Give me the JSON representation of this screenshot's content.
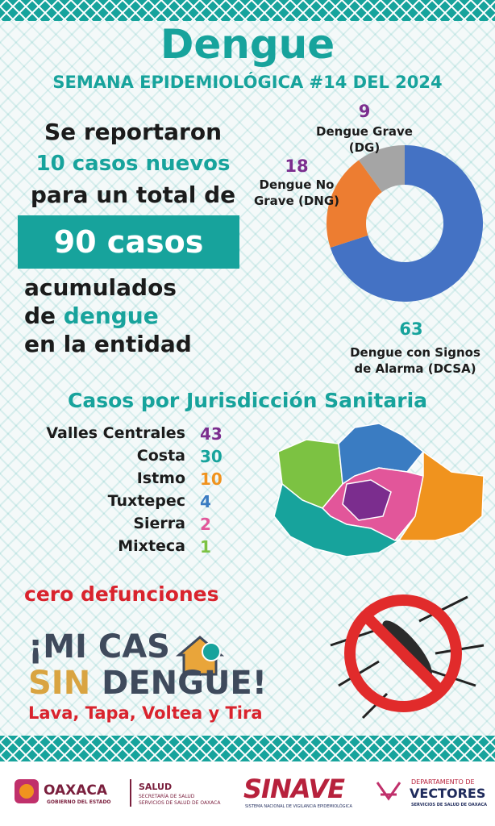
{
  "header": {
    "title": "Dengue",
    "subtitle": "SEMANA EPIDEMIOLÓGICA #14 DEL 2024"
  },
  "summary": {
    "line1": "Se reportaron",
    "new_cases": "10 casos nuevos",
    "line3": "para un total de",
    "total": "90 casos",
    "line5": "acumulados",
    "line6_prefix": "de",
    "line6_highlight": "dengue",
    "line7": "en la entidad"
  },
  "chart_data": {
    "type": "donut",
    "categories": [
      "Dengue con Signos de Alarma (DCSA)",
      "Dengue No Grave (DNG)",
      "Dengue Grave (DG)"
    ],
    "values": [
      63,
      18,
      9
    ],
    "colors": [
      "#4472c4",
      "#ed7d31",
      "#a5a5a5"
    ]
  },
  "jurisdictions": {
    "title": "Casos por Jurisdicción Sanitaria",
    "rows": [
      {
        "name": "Valles Centrales",
        "cases": 43,
        "color": "#7b2d8e"
      },
      {
        "name": "Costa",
        "cases": 30,
        "color": "#17a39c"
      },
      {
        "name": "Istmo",
        "cases": 10,
        "color": "#f0931e"
      },
      {
        "name": "Tuxtepec",
        "cases": 4,
        "color": "#3a7cc2"
      },
      {
        "name": "Sierra",
        "cases": 2,
        "color": "#e2569a"
      },
      {
        "name": "Mixteca",
        "cases": 1,
        "color": "#7cc242"
      }
    ]
  },
  "deaths": "cero defunciones",
  "slogan": {
    "line1": "¡MI CAS",
    "line2_highlight": "SIN",
    "line2_rest": "DENGUE!",
    "actions": "Lava, Tapa, Voltea y Tira"
  },
  "footer": {
    "oaxaca": "OAXACA",
    "oaxaca_sub": "GOBIERNO DEL ESTADO",
    "salud": "SALUD",
    "salud_sub1": "SECRETARÍA DE SALUD",
    "salud_sub2": "SERVICIOS DE SALUD DE OAXACA",
    "sinave": "SINAVE",
    "sinave_sub": "SISTEMA NACIONAL DE VIGILANCIA EPIDEMIOLÓGICA",
    "vectores_top": "DEPARTAMENTO DE",
    "vectores": "VECTORES",
    "vectores_sub": "SERVICIOS DE SALUD DE OAXACA"
  }
}
